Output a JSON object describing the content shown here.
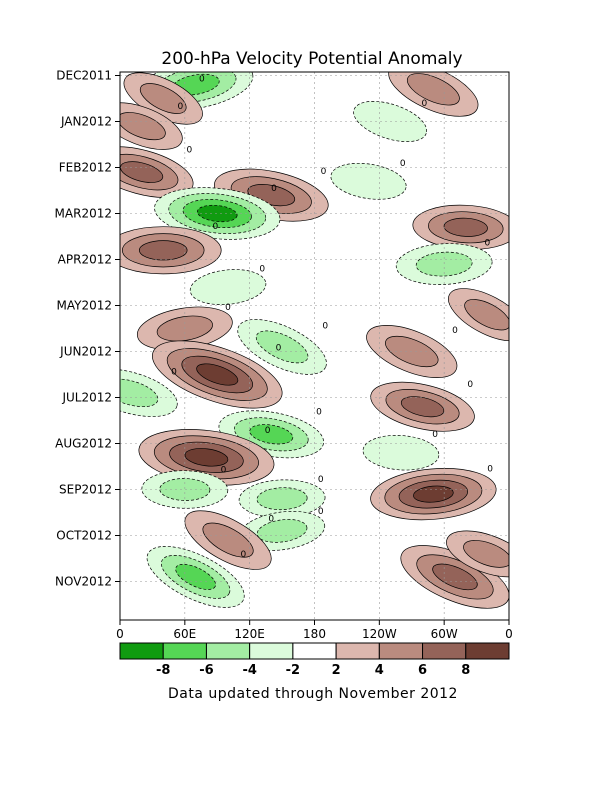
{
  "chart_data": {
    "type": "heatmap",
    "title": "200-hPa Velocity Potential Anomaly",
    "footer": "Data updated through November 2012",
    "x_ticks": [
      "0",
      "60E",
      "120E",
      "180",
      "120W",
      "60W",
      "0"
    ],
    "x_values": [
      0,
      60,
      120,
      180,
      240,
      300,
      360
    ],
    "y_ticks": [
      "DEC2011",
      "JAN2012",
      "FEB2012",
      "MAR2012",
      "APR2012",
      "MAY2012",
      "JUN2012",
      "JUL2012",
      "AUG2012",
      "SEP2012",
      "OCT2012",
      "NOV2012"
    ],
    "colorbar": {
      "labels": [
        "-8",
        "-6",
        "-4",
        "-2",
        "2",
        "4",
        "6",
        "8"
      ],
      "colors": [
        "#109b10",
        "#55d655",
        "#a3eda3",
        "#dbfbdb",
        "#ffffff",
        "#dcb7ae",
        "#ba8b7f",
        "#946359",
        "#6d3d32"
      ]
    },
    "contour_zero_label": "0",
    "anomaly_cells": [
      {
        "lon": 70,
        "month": 0.2,
        "value": -6
      },
      {
        "lon": 40,
        "month": 0.5,
        "value": 3
      },
      {
        "lon": 290,
        "month": 0.3,
        "value": 4
      },
      {
        "lon": 20,
        "month": 1.1,
        "value": 3
      },
      {
        "lon": 250,
        "month": 1.0,
        "value": -2
      },
      {
        "lon": 20,
        "month": 2.1,
        "value": 5
      },
      {
        "lon": 140,
        "month": 2.6,
        "value": 6
      },
      {
        "lon": 230,
        "month": 2.3,
        "value": -2
      },
      {
        "lon": 90,
        "month": 3.0,
        "value": -7
      },
      {
        "lon": 320,
        "month": 3.3,
        "value": 5
      },
      {
        "lon": 40,
        "month": 3.8,
        "value": 6
      },
      {
        "lon": 300,
        "month": 4.1,
        "value": -4
      },
      {
        "lon": 100,
        "month": 4.6,
        "value": -2
      },
      {
        "lon": 60,
        "month": 5.5,
        "value": 4
      },
      {
        "lon": 340,
        "month": 5.2,
        "value": 3
      },
      {
        "lon": 150,
        "month": 5.9,
        "value": -4
      },
      {
        "lon": 270,
        "month": 6.0,
        "value": 4
      },
      {
        "lon": 90,
        "month": 6.5,
        "value": 8
      },
      {
        "lon": 10,
        "month": 6.9,
        "value": -4
      },
      {
        "lon": 280,
        "month": 7.2,
        "value": 5
      },
      {
        "lon": 140,
        "month": 7.8,
        "value": -5
      },
      {
        "lon": 80,
        "month": 8.3,
        "value": 8
      },
      {
        "lon": 260,
        "month": 8.2,
        "value": -2
      },
      {
        "lon": 60,
        "month": 9.0,
        "value": -3
      },
      {
        "lon": 150,
        "month": 9.2,
        "value": -3
      },
      {
        "lon": 290,
        "month": 9.1,
        "value": 7
      },
      {
        "lon": 150,
        "month": 9.9,
        "value": -3
      },
      {
        "lon": 100,
        "month": 10.1,
        "value": 4
      },
      {
        "lon": 70,
        "month": 10.9,
        "value": -5
      },
      {
        "lon": 310,
        "month": 10.9,
        "value": 6
      },
      {
        "lon": 340,
        "month": 10.4,
        "value": 3
      }
    ]
  }
}
